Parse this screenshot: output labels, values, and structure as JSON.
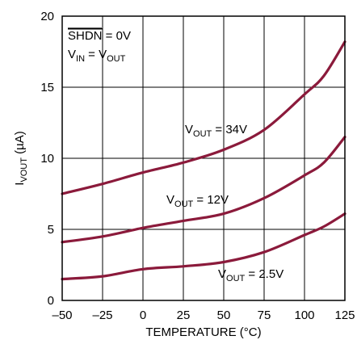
{
  "chart_data": {
    "type": "line",
    "xlabel": "TEMPERATURE (°C)",
    "ylabel": {
      "main": "I",
      "sub": "VOUT",
      "unit": " (µA)"
    },
    "xlim": [
      -50,
      125
    ],
    "ylim": [
      0,
      20
    ],
    "xticks": [
      -50,
      -25,
      0,
      25,
      50,
      75,
      100,
      125
    ],
    "yticks": [
      0,
      5,
      10,
      15,
      20
    ],
    "xtick_labels": [
      "–50",
      "–25",
      "0",
      "25",
      "50",
      "75",
      "100",
      "125"
    ],
    "ytick_labels": [
      "0",
      "5",
      "10",
      "15",
      "20"
    ],
    "grid": true,
    "line_color": "#8b1a3b",
    "conditions": [
      {
        "overline": "SHDN",
        "rest": " = 0V"
      },
      {
        "v1": "V",
        "s1": "IN",
        "mid": " = V",
        "s2": "OUT"
      }
    ],
    "series": [
      {
        "name": {
          "v": "V",
          "sub": "OUT",
          "rest": " = 34V"
        },
        "x": [
          -50,
          -25,
          0,
          25,
          50,
          75,
          100,
          112,
          125
        ],
        "y": [
          7.5,
          8.2,
          9.0,
          9.7,
          10.6,
          12.0,
          14.5,
          15.8,
          18.2
        ]
      },
      {
        "name": {
          "v": "V",
          "sub": "OUT",
          "rest": " = 12V"
        },
        "x": [
          -50,
          -25,
          0,
          25,
          50,
          75,
          100,
          112,
          125
        ],
        "y": [
          4.1,
          4.5,
          5.1,
          5.6,
          6.1,
          7.2,
          8.8,
          9.7,
          11.5
        ]
      },
      {
        "name": {
          "v": "V",
          "sub": "OUT",
          "rest": " = 2.5V"
        },
        "x": [
          -50,
          -25,
          0,
          25,
          50,
          75,
          100,
          112,
          125
        ],
        "y": [
          1.5,
          1.7,
          2.2,
          2.4,
          2.7,
          3.4,
          4.6,
          5.2,
          6.1
        ]
      }
    ]
  }
}
